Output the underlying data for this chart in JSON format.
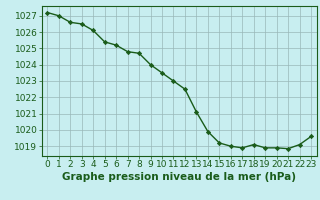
{
  "x": [
    0,
    1,
    2,
    3,
    4,
    5,
    6,
    7,
    8,
    9,
    10,
    11,
    12,
    13,
    14,
    15,
    16,
    17,
    18,
    19,
    20,
    21,
    22,
    23
  ],
  "y": [
    1027.2,
    1027.0,
    1026.6,
    1026.5,
    1026.1,
    1025.4,
    1025.2,
    1024.8,
    1024.7,
    1024.0,
    1023.5,
    1023.0,
    1022.5,
    1021.1,
    1019.9,
    1019.2,
    1019.0,
    1018.9,
    1019.1,
    1018.9,
    1018.9,
    1018.85,
    1019.1,
    1019.6
  ],
  "line_color": "#1a5c1a",
  "marker": "D",
  "marker_size": 2.2,
  "bg_color": "#c8eef0",
  "grid_color": "#9ab8b8",
  "xlabel": "Graphe pression niveau de la mer (hPa)",
  "xlabel_fontsize": 7.5,
  "xlabel_color": "#1a5c1a",
  "ylabel_ticks": [
    1019,
    1020,
    1021,
    1022,
    1023,
    1024,
    1025,
    1026,
    1027
  ],
  "xlim": [
    -0.5,
    23.5
  ],
  "ylim": [
    1018.4,
    1027.6
  ],
  "tick_fontsize": 6.5,
  "tick_color": "#1a5c1a",
  "spine_color": "#1a5c1a",
  "linewidth": 1.0
}
